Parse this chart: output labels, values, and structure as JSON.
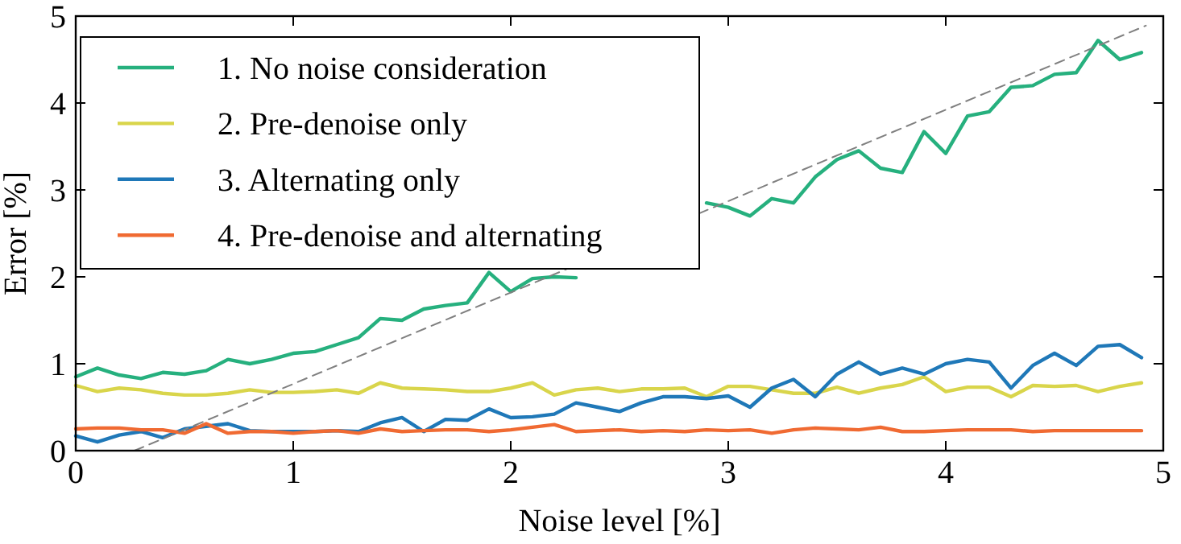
{
  "chart_data": {
    "type": "line",
    "xlabel": "Noise level [%]",
    "ylabel": "Error [%]",
    "x": [
      0,
      0.1,
      0.2,
      0.3,
      0.4,
      0.5,
      0.6,
      0.7,
      0.8,
      0.9,
      1,
      1.1,
      1.2,
      1.3,
      1.4,
      1.5,
      1.6,
      1.7,
      1.8,
      1.9,
      2,
      2.1,
      2.2,
      2.3,
      2.4,
      2.5,
      2.6,
      2.7,
      2.8,
      2.9,
      3,
      3.1,
      3.2,
      3.3,
      3.4,
      3.5,
      3.6,
      3.7,
      3.8,
      3.9,
      4,
      4.1,
      4.2,
      4.3,
      4.4,
      4.5,
      4.6,
      4.7,
      4.8,
      4.9
    ],
    "series": [
      {
        "name": "1. No noise consideration",
        "color": "#26b07e",
        "values": [
          0.85,
          0.95,
          0.87,
          0.83,
          0.9,
          0.88,
          0.92,
          1.05,
          1.0,
          1.05,
          1.12,
          1.14,
          1.22,
          1.3,
          1.52,
          1.5,
          1.63,
          1.67,
          1.7,
          2.05,
          1.83,
          1.98,
          2.0,
          1.99,
          null,
          null,
          null,
          null,
          null,
          2.85,
          2.8,
          2.7,
          2.9,
          2.85,
          3.15,
          3.35,
          3.45,
          3.25,
          3.2,
          3.67,
          3.42,
          3.85,
          3.9,
          4.18,
          4.2,
          4.33,
          4.35,
          4.72,
          4.5,
          4.58
        ]
      },
      {
        "name": "2. Pre-denoise only",
        "color": "#d9d54b",
        "values": [
          0.75,
          0.68,
          0.72,
          0.7,
          0.66,
          0.64,
          0.64,
          0.66,
          0.7,
          0.67,
          0.67,
          0.68,
          0.7,
          0.66,
          0.78,
          0.72,
          0.71,
          0.7,
          0.68,
          0.68,
          0.72,
          0.78,
          0.64,
          0.7,
          0.72,
          0.68,
          0.71,
          0.71,
          0.72,
          0.62,
          0.74,
          0.74,
          0.7,
          0.66,
          0.66,
          0.73,
          0.66,
          0.72,
          0.76,
          0.85,
          0.68,
          0.73,
          0.73,
          0.62,
          0.75,
          0.74,
          0.75,
          0.68,
          0.74,
          0.78
        ]
      },
      {
        "name": "3. Alternating only",
        "color": "#1f78b8",
        "values": [
          0.17,
          0.1,
          0.18,
          0.22,
          0.15,
          0.25,
          0.28,
          0.31,
          0.23,
          0.22,
          0.22,
          0.22,
          0.23,
          0.22,
          0.32,
          0.38,
          0.22,
          0.36,
          0.35,
          0.48,
          0.38,
          0.39,
          0.42,
          0.55,
          0.5,
          0.45,
          0.55,
          0.62,
          0.62,
          0.6,
          0.63,
          0.5,
          0.72,
          0.82,
          0.62,
          0.88,
          1.02,
          0.88,
          0.95,
          0.88,
          1.0,
          1.05,
          1.02,
          0.72,
          0.98,
          1.12,
          0.98,
          1.2,
          1.22,
          1.07
        ]
      },
      {
        "name": "4. Pre-denoise and alternating",
        "color": "#f06a32",
        "values": [
          0.25,
          0.26,
          0.26,
          0.24,
          0.24,
          0.2,
          0.31,
          0.2,
          0.22,
          0.22,
          0.2,
          0.22,
          0.23,
          0.2,
          0.25,
          0.22,
          0.23,
          0.24,
          0.24,
          0.22,
          0.24,
          0.27,
          0.3,
          0.22,
          0.23,
          0.24,
          0.22,
          0.23,
          0.22,
          0.24,
          0.23,
          0.24,
          0.2,
          0.24,
          0.26,
          0.25,
          0.24,
          0.27,
          0.22,
          0.22,
          0.23,
          0.24,
          0.24,
          0.24,
          0.22,
          0.23,
          0.23,
          0.23,
          0.23,
          0.23
        ]
      },
      {
        "color": "#808080",
        "line_style": "dashed",
        "x": [
          0.27,
          4.92
        ],
        "values": [
          0,
          4.89
        ]
      }
    ],
    "xlim": [
      0,
      5
    ],
    "ylim": [
      0,
      5
    ],
    "xticks": [
      0,
      1,
      2,
      3,
      4,
      5
    ],
    "yticks": [
      0,
      1,
      2,
      3,
      4,
      5
    ],
    "grid": false,
    "legend": "top left"
  }
}
